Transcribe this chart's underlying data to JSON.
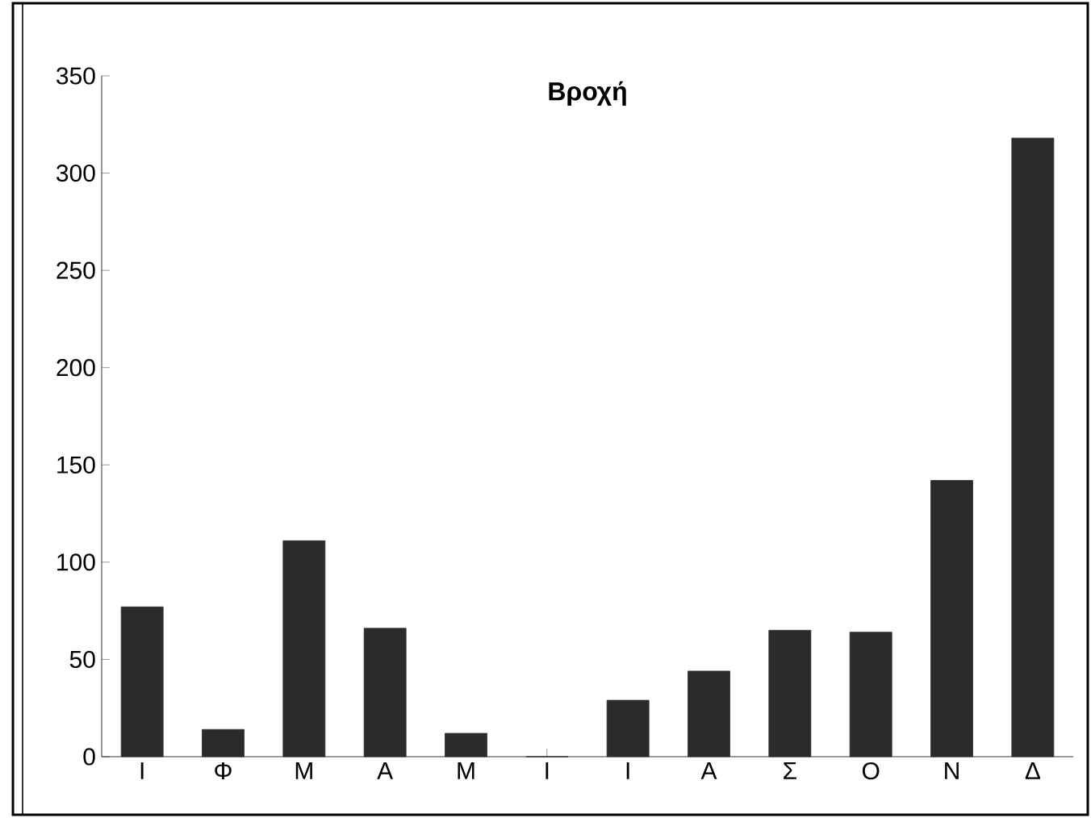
{
  "chart_data": {
    "type": "bar",
    "title": "Βροχή",
    "categories": [
      "Ι",
      "Φ",
      "Μ",
      "Α",
      "Μ",
      "Ι",
      "Ι",
      "Α",
      "Σ",
      "Ο",
      "Ν",
      "Δ"
    ],
    "values": [
      77,
      14,
      111,
      66,
      12,
      0,
      29,
      44,
      65,
      64,
      142,
      318
    ],
    "color": "#2b2b2b",
    "ylim": [
      0,
      350
    ],
    "yticks": [
      0,
      50,
      100,
      150,
      200,
      250,
      300,
      350
    ]
  }
}
